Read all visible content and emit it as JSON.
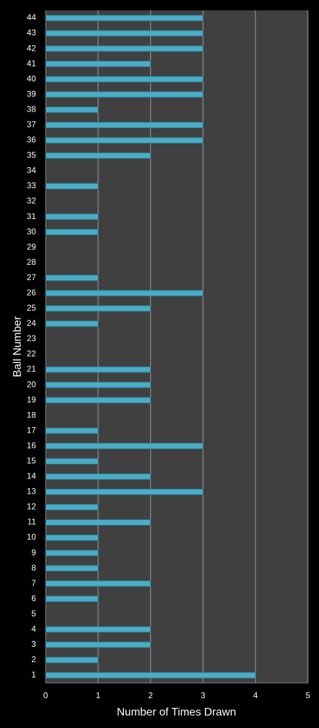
{
  "chart_data": {
    "type": "bar",
    "orientation": "horizontal",
    "x_label": "Number of Times Drawn",
    "y_label": "Ball Number",
    "categories": [
      "1",
      "2",
      "3",
      "4",
      "5",
      "6",
      "7",
      "8",
      "9",
      "10",
      "11",
      "12",
      "13",
      "14",
      "15",
      "16",
      "17",
      "18",
      "19",
      "20",
      "21",
      "22",
      "23",
      "24",
      "25",
      "26",
      "27",
      "28",
      "29",
      "30",
      "31",
      "32",
      "33",
      "34",
      "35",
      "36",
      "37",
      "38",
      "39",
      "40",
      "41",
      "42",
      "43",
      "44"
    ],
    "values": [
      4,
      1,
      2,
      2,
      0,
      1,
      2,
      1,
      1,
      1,
      2,
      1,
      3,
      2,
      1,
      3,
      1,
      0,
      2,
      2,
      2,
      0,
      0,
      1,
      2,
      3,
      1,
      0,
      0,
      1,
      1,
      0,
      1,
      0,
      2,
      3,
      3,
      1,
      3,
      3,
      2,
      3,
      3,
      3
    ],
    "color": "#4bacc6",
    "xlim": [
      0,
      5
    ],
    "xticks": [
      0,
      1,
      2,
      3,
      4,
      5
    ],
    "grid": true
  }
}
